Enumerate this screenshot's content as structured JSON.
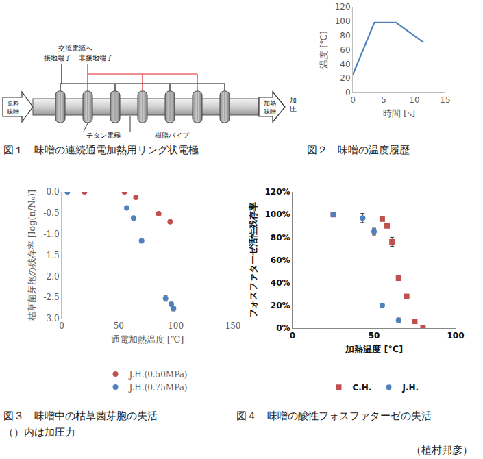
{
  "diagram": {
    "power_label": "交流電源へ",
    "terminal_labels": [
      "接地端子",
      "非接地端子"
    ],
    "inlet_label": [
      "原料",
      "味噌"
    ],
    "outlet_label": [
      "加熱",
      "味噌"
    ],
    "pressure_label": "加圧",
    "electrode_label": "チタン電極",
    "pipe_label": "樹脂パイプ"
  },
  "chart_data": [
    {
      "type": "line",
      "xlabel": "時間 [s]",
      "ylabel": "温度 [℃]",
      "x": [
        0,
        3.5,
        7,
        11.5
      ],
      "series": [
        {
          "values": [
            25,
            98,
            98,
            70
          ],
          "color": "#4f81bd",
          "line_style": "solid"
        }
      ],
      "xlim": [
        0,
        15
      ],
      "xticks": [
        0,
        5,
        10,
        15
      ],
      "ylim": [
        0,
        120
      ],
      "yticks": [
        0,
        20,
        40,
        60,
        80,
        100,
        120
      ],
      "grid": false
    },
    {
      "type": "scatter",
      "xlabel": "通電加熱温度 [℃]",
      "ylabel": "枯草菌芽胞の残存率 [log(n/N₀)]",
      "series": [
        {
          "name": "J.H.(0.50MPa)",
          "color": "#c0504d",
          "marker": "circle",
          "x": [
            20,
            55,
            65,
            85,
            95
          ],
          "values": [
            0,
            0,
            -0.13,
            -0.52,
            -0.71
          ]
        },
        {
          "name": "J.H.(0.75MPa)",
          "color": "#4f81bd",
          "marker": "circle",
          "x": [
            5,
            57,
            63,
            70,
            91,
            96,
            98
          ],
          "values": [
            0,
            -0.38,
            -0.62,
            -1.16,
            -2.52,
            -2.66,
            -2.76
          ],
          "errors": [
            0,
            0,
            0,
            0,
            0.07,
            0.03,
            0.06
          ]
        }
      ],
      "xlim": [
        0,
        150
      ],
      "xticks": [
        0,
        50,
        100,
        150
      ],
      "ylim": [
        -3,
        0
      ],
      "yticks": [
        {
          "value": 0,
          "label": "0.0"
        },
        {
          "value": -0.5,
          "label": "-0.5"
        },
        {
          "value": -1,
          "label": "-1.0"
        },
        {
          "value": -1.5,
          "label": "-1.5"
        },
        {
          "value": -2,
          "label": "-2.0"
        },
        {
          "value": -2.5,
          "label": "-2.5"
        },
        {
          "value": -3,
          "label": "-3.0"
        }
      ],
      "grid": false,
      "legend": "bottom"
    },
    {
      "type": "scatter",
      "xlabel": "加熱温度 [℃]",
      "ylabel": "フォスファターゼ活性残存率",
      "series": [
        {
          "name": "C.H.",
          "color": "#c0504d",
          "marker": "square",
          "x": [
            25,
            55,
            58,
            61,
            65,
            70,
            75,
            80
          ],
          "values": [
            100,
            96,
            90,
            76,
            44,
            28,
            6,
            0
          ],
          "errors": [
            0,
            0,
            0,
            4,
            2,
            0,
            1,
            0
          ]
        },
        {
          "name": "J.H.",
          "color": "#4f81bd",
          "marker": "circle",
          "x": [
            25,
            43,
            50,
            55,
            65
          ],
          "values": [
            100,
            97,
            85,
            20,
            7
          ],
          "errors": [
            0,
            4,
            3,
            0,
            2
          ]
        }
      ],
      "xlim": [
        0,
        100
      ],
      "xticks": [
        0,
        50,
        100
      ],
      "ylim": [
        0,
        120
      ],
      "yticks": [
        {
          "value": 0,
          "label": "0%"
        },
        {
          "value": 20,
          "label": "20%"
        },
        {
          "value": 40,
          "label": "40%"
        },
        {
          "value": 60,
          "label": "60%"
        },
        {
          "value": 80,
          "label": "80%"
        },
        {
          "value": 100,
          "label": "100%"
        },
        {
          "value": 120,
          "label": "120%"
        }
      ],
      "grid": false,
      "legend": "bottom"
    }
  ],
  "captions": {
    "figure1": "図１　味噌の連続通電加熱用リング状電極",
    "figure2": "図２　味噌の温度履歴",
    "figure3": "図３　味噌中の枯草菌芽胞の失活",
    "figure3_note": "（）内は加圧力",
    "figure4": "図４　味噌の酸性フォスファターゼの失活",
    "author": "（植村邦彦）"
  }
}
